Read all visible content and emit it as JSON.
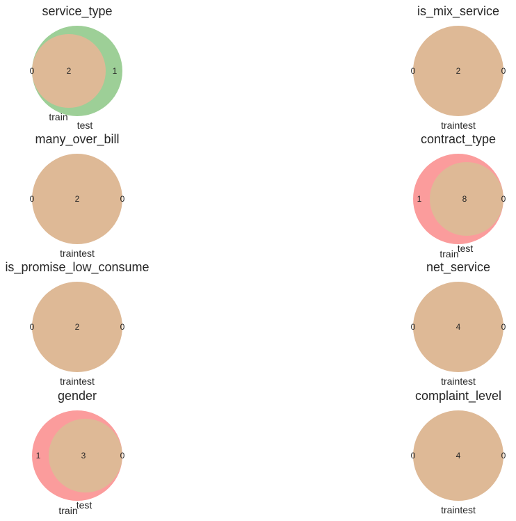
{
  "chart_data": [
    {
      "type": "venn",
      "title": "service_type",
      "sets": [
        "train",
        "test"
      ],
      "only_train": 0,
      "intersection": 2,
      "only_test": 1,
      "bigger": "test",
      "label_text": ""
    },
    {
      "type": "venn",
      "title": "is_mix_service",
      "sets": [
        "train",
        "test"
      ],
      "only_train": 0,
      "intersection": 2,
      "only_test": 0,
      "bigger": "none",
      "label_text": "traintest"
    },
    {
      "type": "venn",
      "title": "many_over_bill",
      "sets": [
        "train",
        "test"
      ],
      "only_train": 0,
      "intersection": 2,
      "only_test": 0,
      "bigger": "none",
      "label_text": "traintest"
    },
    {
      "type": "venn",
      "title": "contract_type",
      "sets": [
        "train",
        "test"
      ],
      "only_train": 1,
      "intersection": 8,
      "only_test": 0,
      "bigger": "train",
      "label_text": ""
    },
    {
      "type": "venn",
      "title": "is_promise_low_consume",
      "sets": [
        "train",
        "test"
      ],
      "only_train": 0,
      "intersection": 2,
      "only_test": 0,
      "bigger": "none",
      "label_text": "traintest"
    },
    {
      "type": "venn",
      "title": "net_service",
      "sets": [
        "train",
        "test"
      ],
      "only_train": 0,
      "intersection": 4,
      "only_test": 0,
      "bigger": "none",
      "label_text": "traintest"
    },
    {
      "type": "venn",
      "title": "gender",
      "sets": [
        "train",
        "test"
      ],
      "only_train": 1,
      "intersection": 3,
      "only_test": 0,
      "bigger": "train",
      "label_text": ""
    },
    {
      "type": "venn",
      "title": "complaint_level",
      "sets": [
        "train",
        "test"
      ],
      "only_train": 0,
      "intersection": 4,
      "only_test": 0,
      "bigger": "none",
      "label_text": "traintest"
    }
  ],
  "colors": {
    "overlap": "#deb996",
    "train_only": "#fb9c9c",
    "test_only": "#9dcf97",
    "text": "#262626"
  }
}
